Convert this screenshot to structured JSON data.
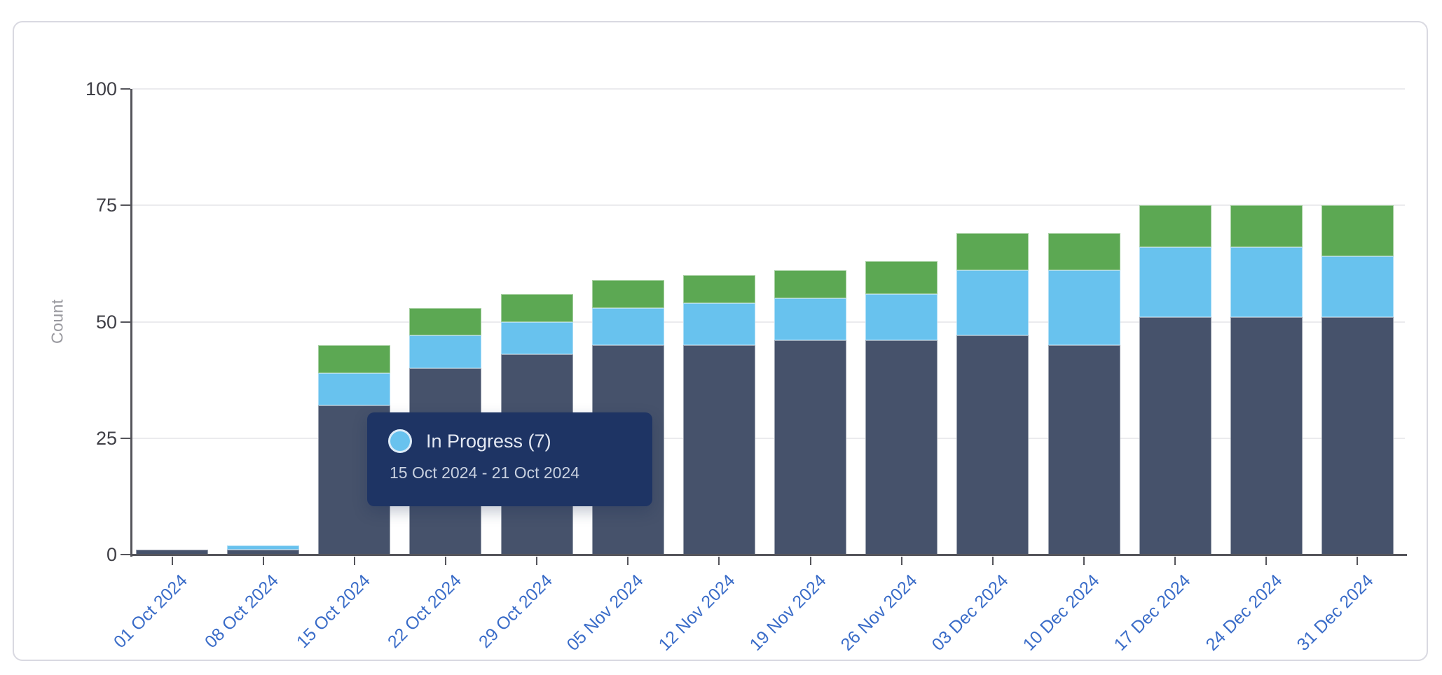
{
  "page": {
    "background": "#ffffff"
  },
  "card": {
    "border_color": "#d9d9e1"
  },
  "chart_data": {
    "type": "bar",
    "stacked": true,
    "title": "",
    "xlabel": "",
    "ylabel": "Count",
    "ylim": [
      0,
      100
    ],
    "y_ticks": [
      0,
      25,
      50,
      75,
      100
    ],
    "grid": true,
    "legend_position": "none",
    "categories": [
      "01 Oct 2024",
      "08 Oct 2024",
      "15 Oct 2024",
      "22 Oct 2024",
      "29 Oct 2024",
      "05 Nov 2024",
      "12 Nov 2024",
      "19 Nov 2024",
      "26 Nov 2024",
      "03 Dec 2024",
      "10 Dec 2024",
      "17 Dec 2024",
      "24 Dec 2024",
      "31 Dec 2024"
    ],
    "series": [
      {
        "id": "series-bottom",
        "label": "",
        "color": "#46526b",
        "values": [
          1,
          1,
          32,
          40,
          43,
          45,
          45,
          46,
          46,
          47,
          45,
          51,
          51,
          51
        ]
      },
      {
        "id": "series-in-progress",
        "label": "In Progress",
        "color": "#68c2ee",
        "values": [
          0,
          1,
          7,
          7,
          7,
          8,
          9,
          9,
          10,
          14,
          16,
          15,
          15,
          13
        ]
      },
      {
        "id": "series-top",
        "label": "",
        "color": "#5ca853",
        "values": [
          0,
          0,
          6,
          6,
          6,
          6,
          6,
          6,
          7,
          8,
          8,
          9,
          9,
          11
        ]
      }
    ],
    "totals": [
      1,
      2,
      45,
      53,
      56,
      59,
      60,
      61,
      63,
      69,
      69,
      75,
      75,
      75
    ],
    "tooltip": {
      "title": "In Progress (7)",
      "date_range": "15 Oct 2024 - 21 Oct 2024",
      "swatch_color": "#68c2ee",
      "background": "#1e3464"
    },
    "axis_colors": {
      "x_label_color": "#3a6cc8",
      "y_label_color": "#3f3f46",
      "axis_line_color": "#55555b",
      "gridline_color": "#ebebee"
    }
  }
}
